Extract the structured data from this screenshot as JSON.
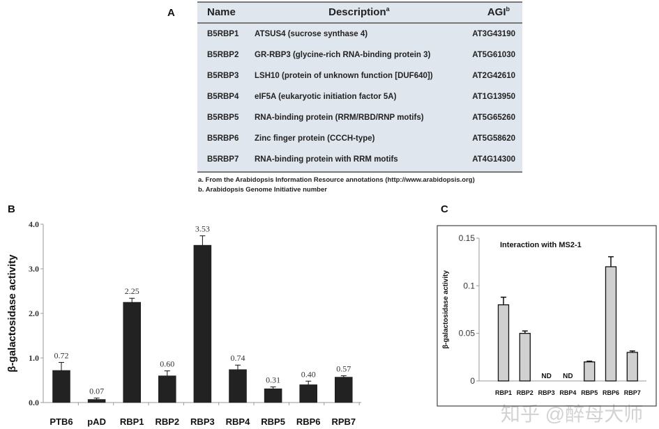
{
  "panels": {
    "a": "A",
    "b": "B",
    "c": "C"
  },
  "table": {
    "headers": [
      "Name",
      "Description",
      "AGI"
    ],
    "header_sups": [
      "",
      "a",
      "b"
    ],
    "rows": [
      [
        "B5RBP1",
        "ATSUS4 (sucrose synthase 4)",
        "AT3G43190"
      ],
      [
        "B5RBP2",
        "GR-RBP3 (glycine-rich RNA-binding protein 3)",
        "AT5G61030"
      ],
      [
        "B5RBP3",
        "LSH10 (protein of unknown function [DUF640])",
        "AT2G42610"
      ],
      [
        "B5RBP4",
        "eIF5A (eukaryotic initiation factor 5A)",
        "AT1G13950"
      ],
      [
        "B5RBP5",
        "RNA-binding protein (RRM/RBD/RNP motifs)",
        "AT5G65260"
      ],
      [
        "B5RBP6",
        "Zinc finger protein (CCCH-type)",
        "AT5G58620"
      ],
      [
        "B5RBP7",
        "RNA-binding protein with RRM motifs",
        "AT4G14300"
      ]
    ],
    "footnotes": [
      "a. From the Arabidopsis Information Resource annotations (http://www.arabidopsis.org)",
      "b. Arabidopsis Genome Initiative number"
    ],
    "background": "#dfe6ee"
  },
  "chart_data": [
    {
      "type": "bar",
      "title": "",
      "xlabel": "",
      "ylabel": "β-galactosidase activity",
      "ylim": [
        0,
        4.0
      ],
      "yticks": [
        "0.0",
        "1.0",
        "2.0",
        "3.0",
        "4.0"
      ],
      "categories": [
        "PTB6",
        "pAD",
        "RBP1",
        "RBP2",
        "RBP3",
        "RBP4",
        "RBP5",
        "RBP6",
        "RPB7"
      ],
      "values": [
        0.72,
        0.07,
        2.25,
        0.6,
        3.53,
        0.74,
        0.31,
        0.4,
        0.57
      ],
      "errors": [
        0.18,
        0.03,
        0.09,
        0.11,
        0.21,
        0.1,
        0.04,
        0.08,
        0.03
      ],
      "data_labels": [
        "0.72",
        "0.07",
        "2.25",
        "0.60",
        "3.53",
        "0.74",
        "0.31",
        "0.40",
        "0.57"
      ],
      "bar_color": "#222222",
      "grid": false
    },
    {
      "type": "bar",
      "title": "Interaction with MS2-1",
      "xlabel": "",
      "ylabel": "β-galactosidase activity",
      "ylim": [
        0,
        0.15
      ],
      "yticks": [
        "0",
        "0.05",
        "0.1",
        "0.15"
      ],
      "categories": [
        "RBP1",
        "RBP2",
        "RBP3",
        "RBP4",
        "RBP5",
        "RBP6",
        "RBP7"
      ],
      "values": [
        0.08,
        0.05,
        0,
        0,
        0.02,
        0.12,
        0.03
      ],
      "errors": [
        0.008,
        0.0025,
        0,
        0,
        0.0008,
        0.0105,
        0.0015
      ],
      "annotations": [
        "",
        "",
        "ND",
        "ND",
        "",
        "",
        ""
      ],
      "bar_color": "#d0d0d0",
      "grid": false
    }
  ],
  "watermark": "知乎 @醉母大师"
}
